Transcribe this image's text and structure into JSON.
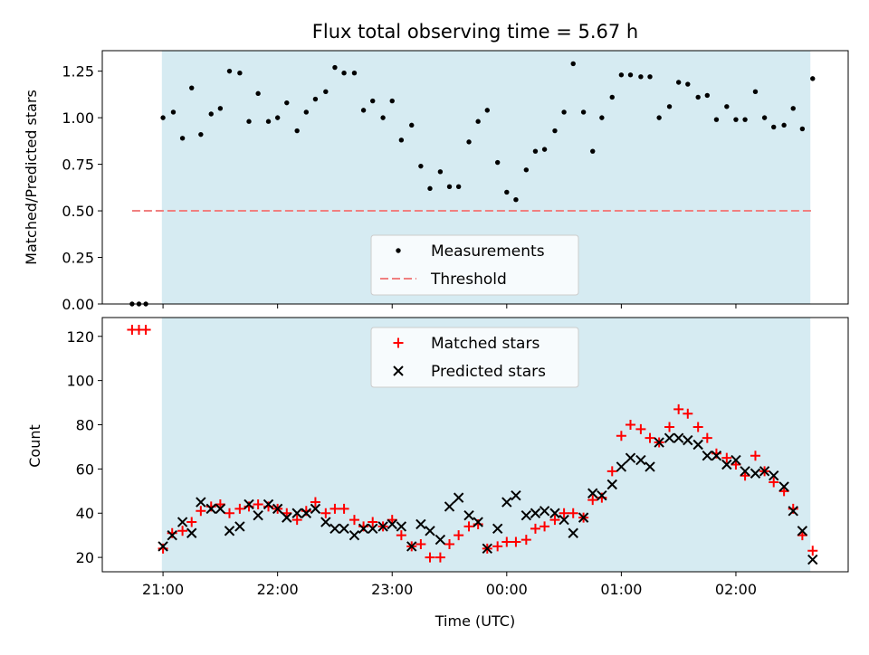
{
  "title": "Flux total observing time = 5.67 h",
  "colors": {
    "shade": "#add8e6",
    "threshold": "#f08080",
    "matched": "#ff0000",
    "predicted": "#000000",
    "measurement": "#000000"
  },
  "chart_data": [
    {
      "type": "scatter",
      "name": "ratio-panel",
      "ylabel": "Matched/Predicted stars",
      "ylim": [
        0,
        1.36
      ],
      "yticks": [
        0.0,
        0.25,
        0.5,
        0.75,
        1.0,
        1.25
      ],
      "ytick_labels": [
        "0.00",
        "0.25",
        "0.50",
        "0.75",
        "1.00",
        "1.25"
      ],
      "xlim_hours": [
        20.47,
        26.98
      ],
      "shaded_span_hours": [
        20.99,
        26.65
      ],
      "legend_position": "lower center",
      "series": [
        {
          "name": "Measurements",
          "marker": "dot",
          "points": [
            [
              20.73,
              0.0
            ],
            [
              20.79,
              0.0
            ],
            [
              20.85,
              0.0
            ],
            [
              21.0,
              1.0
            ],
            [
              21.09,
              1.03
            ],
            [
              21.17,
              0.89
            ],
            [
              21.25,
              1.16
            ],
            [
              21.33,
              0.91
            ],
            [
              21.42,
              1.02
            ],
            [
              21.5,
              1.05
            ],
            [
              21.58,
              1.25
            ],
            [
              21.67,
              1.24
            ],
            [
              21.75,
              0.98
            ],
            [
              21.83,
              1.13
            ],
            [
              21.92,
              0.98
            ],
            [
              22.0,
              1.0
            ],
            [
              22.08,
              1.08
            ],
            [
              22.17,
              0.93
            ],
            [
              22.25,
              1.03
            ],
            [
              22.33,
              1.1
            ],
            [
              22.42,
              1.14
            ],
            [
              22.5,
              1.27
            ],
            [
              22.58,
              1.24
            ],
            [
              22.67,
              1.24
            ],
            [
              22.75,
              1.04
            ],
            [
              22.83,
              1.09
            ],
            [
              22.92,
              1.0
            ],
            [
              23.0,
              1.09
            ],
            [
              23.08,
              0.88
            ],
            [
              23.17,
              0.96
            ],
            [
              23.25,
              0.74
            ],
            [
              23.33,
              0.62
            ],
            [
              23.42,
              0.71
            ],
            [
              23.5,
              0.63
            ],
            [
              23.58,
              0.63
            ],
            [
              23.67,
              0.87
            ],
            [
              23.75,
              0.98
            ],
            [
              23.83,
              1.04
            ],
            [
              23.92,
              0.76
            ],
            [
              24.0,
              0.6
            ],
            [
              24.08,
              0.56
            ],
            [
              24.17,
              0.72
            ],
            [
              24.25,
              0.82
            ],
            [
              24.33,
              0.83
            ],
            [
              24.42,
              0.93
            ],
            [
              24.5,
              1.03
            ],
            [
              24.58,
              1.29
            ],
            [
              24.67,
              1.03
            ],
            [
              24.75,
              0.82
            ],
            [
              24.83,
              1.0
            ],
            [
              24.92,
              1.11
            ],
            [
              25.0,
              1.23
            ],
            [
              25.08,
              1.23
            ],
            [
              25.17,
              1.22
            ],
            [
              25.25,
              1.22
            ],
            [
              25.33,
              1.0
            ],
            [
              25.42,
              1.06
            ],
            [
              25.5,
              1.19
            ],
            [
              25.58,
              1.18
            ],
            [
              25.67,
              1.11
            ],
            [
              25.75,
              1.12
            ],
            [
              25.83,
              0.99
            ],
            [
              25.92,
              1.06
            ],
            [
              26.0,
              0.99
            ],
            [
              26.08,
              0.99
            ],
            [
              26.17,
              1.14
            ],
            [
              26.25,
              1.0
            ],
            [
              26.33,
              0.95
            ],
            [
              26.42,
              0.96
            ],
            [
              26.5,
              1.05
            ],
            [
              26.58,
              0.94
            ],
            [
              26.67,
              1.21
            ]
          ]
        },
        {
          "name": "Threshold",
          "style": "dashed",
          "y": 0.5,
          "x_range_hours": [
            20.73,
            26.67
          ]
        }
      ]
    },
    {
      "type": "scatter",
      "name": "count-panel",
      "xlabel": "Time (UTC)",
      "ylabel": "Count",
      "ylim": [
        13.5,
        128.5
      ],
      "yticks": [
        20,
        40,
        60,
        80,
        100,
        120
      ],
      "xlim_hours": [
        20.47,
        26.98
      ],
      "xticks_hours": [
        21,
        22,
        23,
        24,
        25,
        26
      ],
      "xtick_labels": [
        "21:00",
        "22:00",
        "23:00",
        "00:00",
        "01:00",
        "02:00"
      ],
      "shaded_span_hours": [
        20.99,
        26.65
      ],
      "legend_position": "upper center",
      "series": [
        {
          "name": "Matched stars",
          "marker": "plus",
          "points": [
            [
              20.73,
              123
            ],
            [
              20.79,
              123
            ],
            [
              20.85,
              123
            ],
            [
              21.0,
              24
            ],
            [
              21.08,
              31
            ],
            [
              21.17,
              32
            ],
            [
              21.25,
              36
            ],
            [
              21.33,
              41
            ],
            [
              21.42,
              43
            ],
            [
              21.5,
              44
            ],
            [
              21.58,
              40
            ],
            [
              21.67,
              42
            ],
            [
              21.75,
              43
            ],
            [
              21.83,
              44
            ],
            [
              21.92,
              43
            ],
            [
              22.0,
              42
            ],
            [
              22.08,
              40
            ],
            [
              22.17,
              37
            ],
            [
              22.25,
              41
            ],
            [
              22.33,
              45
            ],
            [
              22.42,
              40
            ],
            [
              22.5,
              42
            ],
            [
              22.58,
              42
            ],
            [
              22.67,
              37
            ],
            [
              22.75,
              34
            ],
            [
              22.83,
              36
            ],
            [
              22.92,
              34
            ],
            [
              23.0,
              37
            ],
            [
              23.08,
              30
            ],
            [
              23.17,
              25
            ],
            [
              23.25,
              26
            ],
            [
              23.33,
              20
            ],
            [
              23.42,
              20
            ],
            [
              23.5,
              26
            ],
            [
              23.58,
              30
            ],
            [
              23.67,
              34
            ],
            [
              23.75,
              35
            ],
            [
              23.83,
              24
            ],
            [
              23.92,
              25
            ],
            [
              24.0,
              27
            ],
            [
              24.08,
              27
            ],
            [
              24.17,
              28
            ],
            [
              24.25,
              33
            ],
            [
              24.33,
              34
            ],
            [
              24.42,
              37
            ],
            [
              24.5,
              40
            ],
            [
              24.58,
              40
            ],
            [
              24.67,
              38
            ],
            [
              24.75,
              46
            ],
            [
              24.83,
              47
            ],
            [
              24.92,
              59
            ],
            [
              25.0,
              75
            ],
            [
              25.08,
              80
            ],
            [
              25.17,
              78
            ],
            [
              25.25,
              74
            ],
            [
              25.33,
              72
            ],
            [
              25.42,
              79
            ],
            [
              25.5,
              87
            ],
            [
              25.58,
              85
            ],
            [
              25.67,
              79
            ],
            [
              25.75,
              74
            ],
            [
              25.83,
              67
            ],
            [
              25.92,
              65
            ],
            [
              26.0,
              62
            ],
            [
              26.08,
              57
            ],
            [
              26.17,
              66
            ],
            [
              26.25,
              59
            ],
            [
              26.33,
              54
            ],
            [
              26.42,
              50
            ],
            [
              26.5,
              42
            ],
            [
              26.58,
              30
            ],
            [
              26.67,
              23
            ]
          ]
        },
        {
          "name": "Predicted stars",
          "marker": "x",
          "points": [
            [
              21.0,
              25
            ],
            [
              21.08,
              30
            ],
            [
              21.17,
              36
            ],
            [
              21.25,
              31
            ],
            [
              21.33,
              45
            ],
            [
              21.42,
              42
            ],
            [
              21.5,
              42
            ],
            [
              21.58,
              32
            ],
            [
              21.67,
              34
            ],
            [
              21.75,
              44
            ],
            [
              21.83,
              39
            ],
            [
              21.92,
              44
            ],
            [
              22.0,
              42
            ],
            [
              22.08,
              38
            ],
            [
              22.17,
              40
            ],
            [
              22.25,
              40
            ],
            [
              22.33,
              42
            ],
            [
              22.42,
              36
            ],
            [
              22.5,
              33
            ],
            [
              22.58,
              33
            ],
            [
              22.67,
              30
            ],
            [
              22.75,
              33
            ],
            [
              22.83,
              33
            ],
            [
              22.92,
              34
            ],
            [
              23.0,
              35
            ],
            [
              23.08,
              34
            ],
            [
              23.17,
              25
            ],
            [
              23.25,
              35
            ],
            [
              23.33,
              32
            ],
            [
              23.42,
              28
            ],
            [
              23.5,
              43
            ],
            [
              23.58,
              47
            ],
            [
              23.67,
              39
            ],
            [
              23.75,
              36
            ],
            [
              23.83,
              24
            ],
            [
              23.92,
              33
            ],
            [
              24.0,
              45
            ],
            [
              24.08,
              48
            ],
            [
              24.17,
              39
            ],
            [
              24.25,
              40
            ],
            [
              24.33,
              41
            ],
            [
              24.42,
              40
            ],
            [
              24.5,
              37
            ],
            [
              24.58,
              31
            ],
            [
              24.67,
              38
            ],
            [
              24.75,
              49
            ],
            [
              24.83,
              48
            ],
            [
              24.92,
              53
            ],
            [
              25.0,
              61
            ],
            [
              25.08,
              65
            ],
            [
              25.17,
              64
            ],
            [
              25.25,
              61
            ],
            [
              25.33,
              72
            ],
            [
              25.42,
              74
            ],
            [
              25.5,
              74
            ],
            [
              25.58,
              73
            ],
            [
              25.67,
              71
            ],
            [
              25.75,
              66
            ],
            [
              25.83,
              66
            ],
            [
              25.92,
              62
            ],
            [
              26.0,
              64
            ],
            [
              26.08,
              59
            ],
            [
              26.17,
              58
            ],
            [
              26.25,
              59
            ],
            [
              26.33,
              57
            ],
            [
              26.42,
              52
            ],
            [
              26.5,
              41
            ],
            [
              26.58,
              32
            ],
            [
              26.67,
              19
            ]
          ]
        }
      ]
    }
  ]
}
